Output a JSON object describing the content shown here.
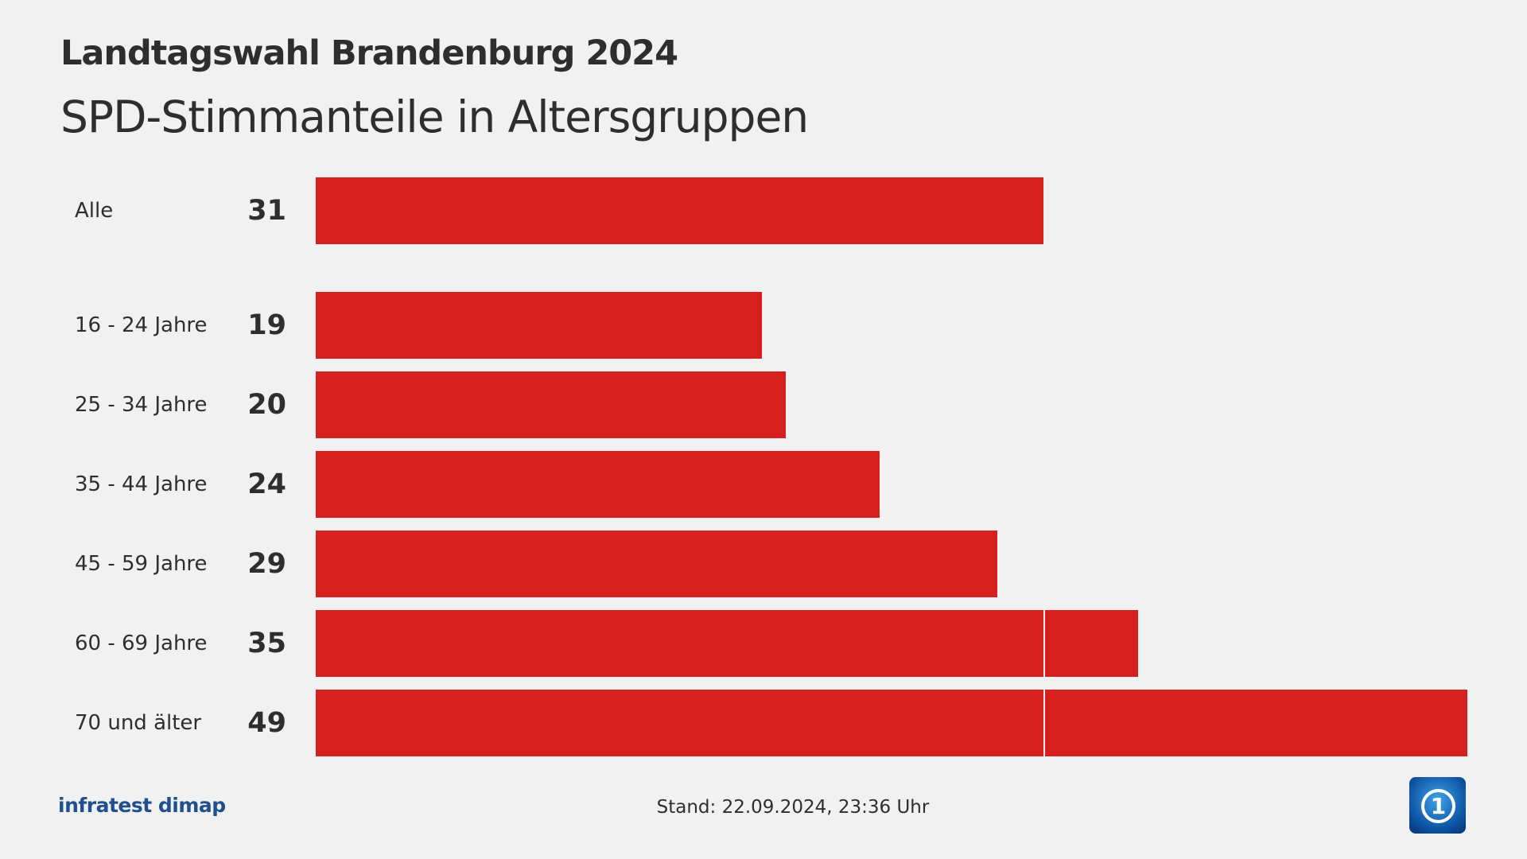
{
  "title": "Landtagswahl Brandenburg 2024",
  "subtitle": "SPD-Stimmanteile in Altersgruppen",
  "chart_data": {
    "type": "bar",
    "orientation": "horizontal",
    "categories": [
      "Alle",
      "16 - 24 Jahre",
      "25 - 34 Jahre",
      "35 - 44 Jahre",
      "45 - 59 Jahre",
      "60 - 69 Jahre",
      "70 und älter"
    ],
    "values": [
      31,
      19,
      20,
      24,
      29,
      35,
      49
    ],
    "reference_line": 31,
    "xlim": [
      0,
      49
    ],
    "color": "#d61f1f",
    "grid": false
  },
  "footer": {
    "source": "infratest dimap",
    "stand": "Stand:  22.09.2024, 23:36 Uhr",
    "logo": "ARD-1-logo"
  }
}
